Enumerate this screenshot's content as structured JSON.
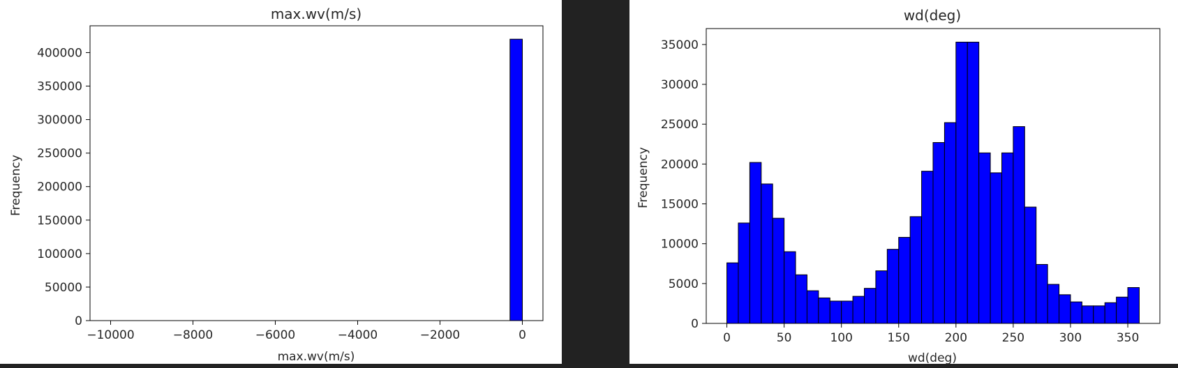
{
  "chart_data": [
    {
      "type": "bar",
      "title": "max.wv(m/s)",
      "xlabel": "max.wv(m/s)",
      "ylabel": "Frequency",
      "xlim": [
        -10500,
        500
      ],
      "ylim": [
        0,
        440000
      ],
      "xticks": [
        -10000,
        -8000,
        -6000,
        -4000,
        -2000,
        0
      ],
      "xtick_labels": [
        "−10000",
        "−8000",
        "−6000",
        "−4000",
        "−2000",
        "0"
      ],
      "yticks": [
        0,
        50000,
        100000,
        150000,
        200000,
        250000,
        300000,
        350000,
        400000
      ],
      "ytick_labels": [
        "0",
        "50000",
        "100000",
        "150000",
        "200000",
        "250000",
        "300000",
        "350000",
        "400000"
      ],
      "bins": [
        {
          "x0": -300,
          "x1": 0,
          "count": 420000
        }
      ],
      "color": "#0000ff",
      "edgecolor": "#000000",
      "grid": false
    },
    {
      "type": "bar",
      "title": "wd(deg)",
      "xlabel": "wd(deg)",
      "ylabel": "Frequency",
      "xlim": [
        -18,
        378
      ],
      "ylim": [
        0,
        37000
      ],
      "xticks": [
        0,
        50,
        100,
        150,
        200,
        250,
        300,
        350
      ],
      "xtick_labels": [
        "0",
        "50",
        "100",
        "150",
        "200",
        "250",
        "300",
        "350"
      ],
      "yticks": [
        0,
        5000,
        10000,
        15000,
        20000,
        25000,
        30000,
        35000
      ],
      "ytick_labels": [
        "0",
        "5000",
        "10000",
        "15000",
        "20000",
        "25000",
        "30000",
        "35000"
      ],
      "bin_start": 0,
      "bin_width": 10,
      "counts": [
        7600,
        12600,
        20200,
        17500,
        13200,
        9000,
        6100,
        4100,
        3200,
        2800,
        2800,
        3400,
        4400,
        6600,
        9300,
        10800,
        13400,
        19100,
        22700,
        25200,
        35300,
        35300,
        21400,
        18900,
        21400,
        24700,
        14600,
        7400,
        4900,
        3600,
        2700,
        2200,
        2200,
        2600,
        3300,
        4500
      ],
      "color": "#0000ff",
      "edgecolor": "#000000",
      "grid": false
    }
  ]
}
